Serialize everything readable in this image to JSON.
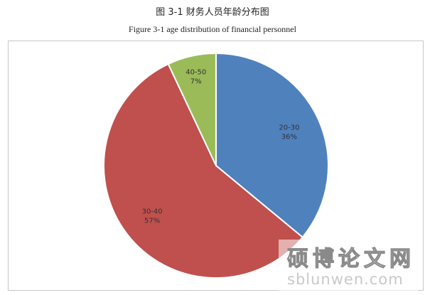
{
  "title_cn": "图 3-1 财务人员年龄分布图",
  "title_en": "Figure 3-1 age distribution of financial personnel",
  "chart_data": {
    "type": "pie",
    "title": "",
    "slices": [
      {
        "label": "20-30",
        "value": 36,
        "value_label": "36%",
        "color": "#4F81BD"
      },
      {
        "label": "30-40",
        "value": 57,
        "value_label": "57%",
        "color": "#C0504D"
      },
      {
        "label": "40-50",
        "value": 7,
        "value_label": "7%",
        "color": "#9BBB59"
      }
    ],
    "start_angle_deg": 0,
    "direction": "clockwise",
    "legend": "none"
  },
  "watermark": {
    "name_cn": "硕博论文网",
    "url": "sblunwen.com"
  }
}
